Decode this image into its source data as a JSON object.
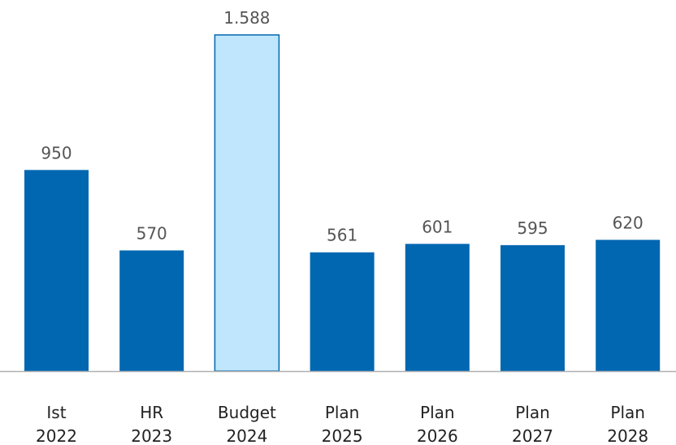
{
  "chart_data": {
    "type": "bar",
    "categories": [
      [
        "Ist",
        "2022"
      ],
      [
        "HR",
        "2023"
      ],
      [
        "Budget",
        "2024"
      ],
      [
        "Plan",
        "2025"
      ],
      [
        "Plan",
        "2026"
      ],
      [
        "Plan",
        "2027"
      ],
      [
        "Plan",
        "2028"
      ]
    ],
    "values": [
      950,
      570,
      1588,
      561,
      601,
      595,
      620
    ],
    "value_labels": [
      "950",
      "570",
      "1.588",
      "561",
      "601",
      "595",
      "620"
    ],
    "highlight_index": 2,
    "ylim": [
      0,
      1588
    ],
    "grid": false,
    "colors": {
      "bar": "#0167b1",
      "highlight_fill": "#bfe6fd",
      "highlight_stroke": "#0167b1",
      "baseline": "#b0b0b0"
    }
  }
}
